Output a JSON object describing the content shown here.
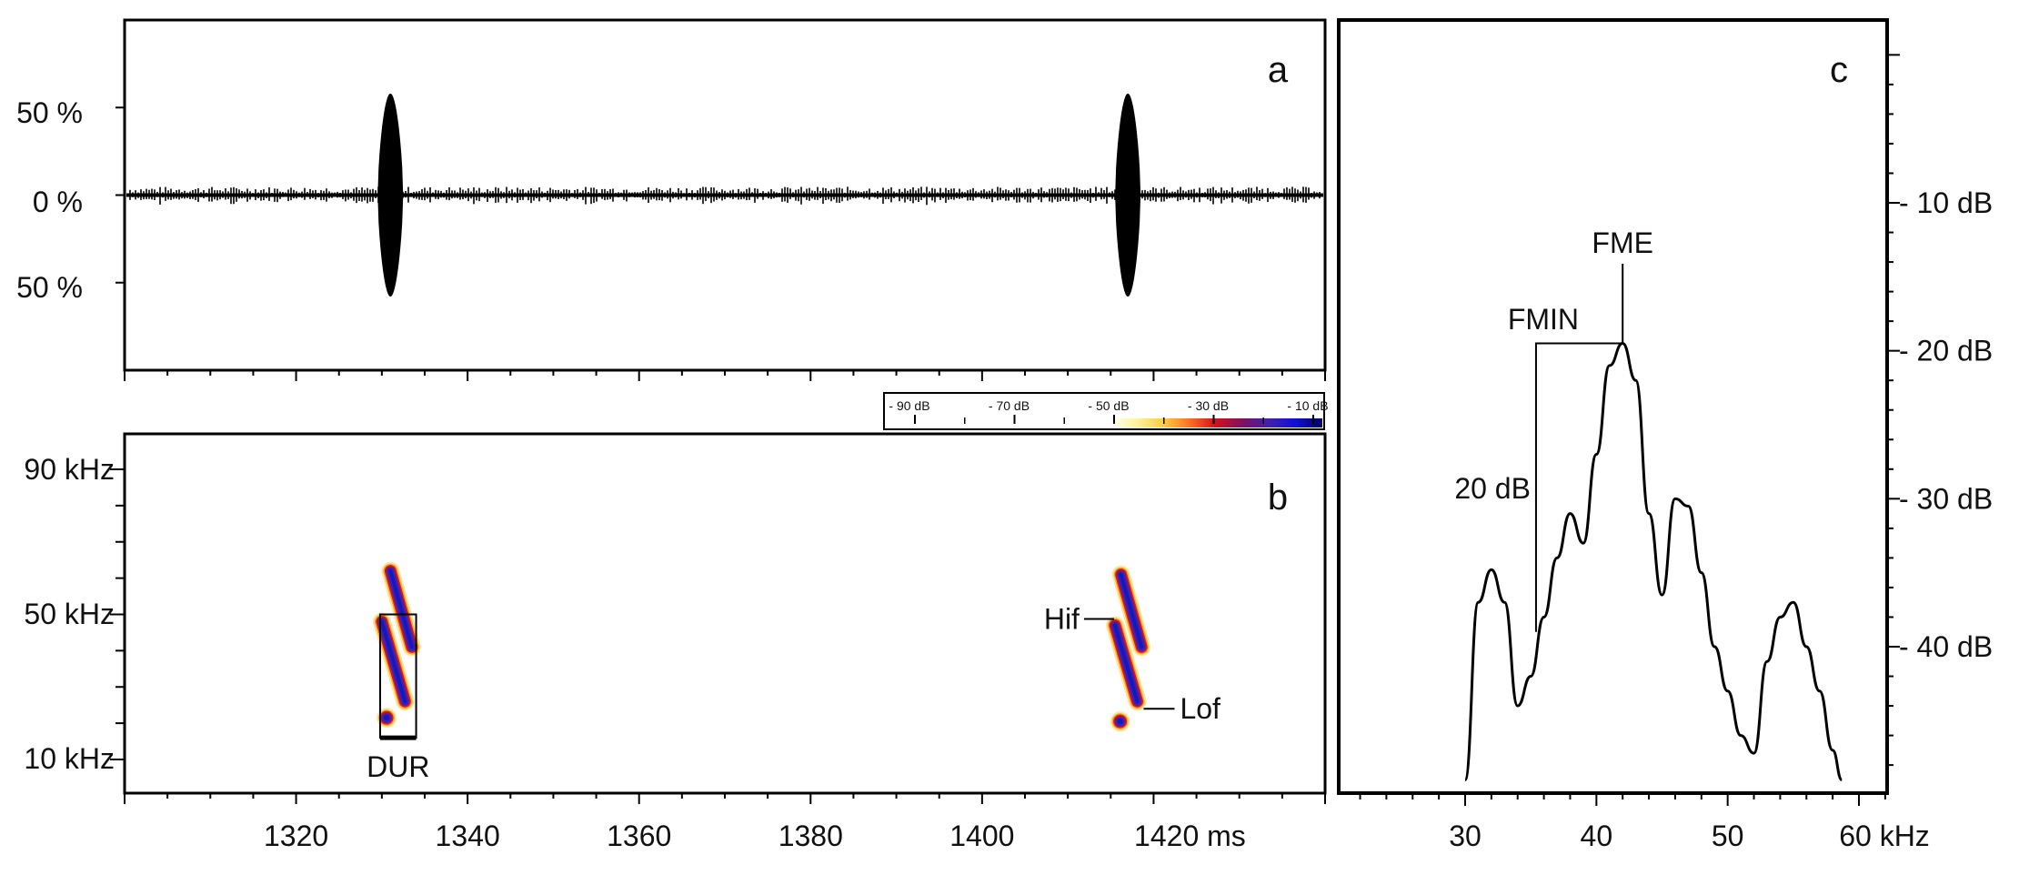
{
  "chart_data": [
    {
      "panel": "a",
      "type": "line",
      "y_tick_labels": [
        "50 %",
        "0 %",
        "50 %"
      ],
      "ylim": [
        -100,
        100
      ],
      "xlim": [
        1300,
        1440
      ],
      "pulse_centers_ms": [
        1331,
        1417
      ],
      "pulse_amplitude_pct": 58,
      "noise_amplitude_pct": 3
    },
    {
      "panel": "b",
      "type": "heatmap",
      "y_tick_labels": [
        "90 kHz",
        "50 kHz",
        "10 kHz"
      ],
      "y_ticks": [
        90,
        50,
        10
      ],
      "ylim": [
        0,
        100
      ],
      "x_ticks": [
        1320,
        1340,
        1360,
        1380,
        1400,
        1420
      ],
      "x_tick_labels": [
        "1320",
        "1340",
        "1360",
        "1380",
        "1400",
        "1420 ms"
      ],
      "xlim": [
        1300,
        1440
      ],
      "colorbar_labels": [
        "- 90 dB",
        "- 70 dB",
        "- 50 dB",
        "- 30 dB",
        "- 10 dB"
      ],
      "colorbar_colors": [
        "#ffffff",
        "#fff3a0",
        "#ffd040",
        "#ff7020",
        "#d01020",
        "#801060",
        "#4020b0",
        "#1010d0",
        "#000060"
      ],
      "calls": [
        {
          "segments": [
            {
              "t0": 1331.0,
              "f0": 62,
              "t1": 1333.5,
              "f1": 41
            },
            {
              "t0": 1330.0,
              "f0": 48,
              "t1": 1332.7,
              "f1": 26
            },
            {
              "t0": 1330.2,
              "f0": 22,
              "t1": 1330.9,
              "f1": 21
            }
          ]
        },
        {
          "segments": [
            {
              "t0": 1416.2,
              "f0": 61,
              "t1": 1418.6,
              "f1": 41
            },
            {
              "t0": 1415.5,
              "f0": 47,
              "t1": 1418.1,
              "f1": 26
            },
            {
              "t0": 1415.8,
              "f0": 21,
              "t1": 1416.4,
              "f1": 20
            }
          ]
        }
      ],
      "annotations": {
        "dur_label": "DUR",
        "dur_t0": 1329.8,
        "dur_t1": 1334.0,
        "dur_fmin": 16,
        "dur_fmax": 50,
        "hif_label": "Hif",
        "hif_t": 1415.6,
        "hif_f": 48,
        "lof_label": "Lof",
        "lof_t": 1418.2,
        "lof_f": 25
      }
    },
    {
      "panel": "c",
      "type": "line",
      "x_ticks": [
        30,
        40,
        50,
        60
      ],
      "x_tick_labels": [
        "30",
        "40",
        "50",
        "60 kHz"
      ],
      "xlim": [
        21,
        62
      ],
      "y_ticks": [
        -10,
        -20,
        -30,
        -40
      ],
      "y_tick_labels": [
        "- 10 dB",
        "- 20 dB",
        "- 30 dB",
        "- 40 dB"
      ],
      "ylim": [
        -49,
        2
      ],
      "x": [
        30,
        31,
        32,
        33,
        34,
        35,
        36,
        37,
        38,
        39,
        40,
        41,
        42,
        43,
        44,
        45,
        46,
        47,
        48,
        49,
        50,
        51,
        52,
        53,
        54,
        55,
        56,
        57,
        58,
        58.7
      ],
      "y": [
        -49,
        -37,
        -34.8,
        -37,
        -44,
        -42,
        -38,
        -34,
        -31,
        -33,
        -27,
        -21,
        -19.5,
        -22,
        -31,
        -36.5,
        -30,
        -30.5,
        -35,
        -40,
        -43,
        -46,
        -47.2,
        -41,
        -38,
        -37,
        -40,
        -43,
        -47,
        -49
      ],
      "annotations": {
        "fme_label": "FME",
        "fme_x": 42,
        "fme_y": -19.5,
        "fmin_label": "FMIN",
        "fmin_x": 35.4,
        "fmin_y": -39,
        "db_label": "20 dB"
      }
    }
  ],
  "panel_letters": [
    "a",
    "b",
    "c"
  ]
}
